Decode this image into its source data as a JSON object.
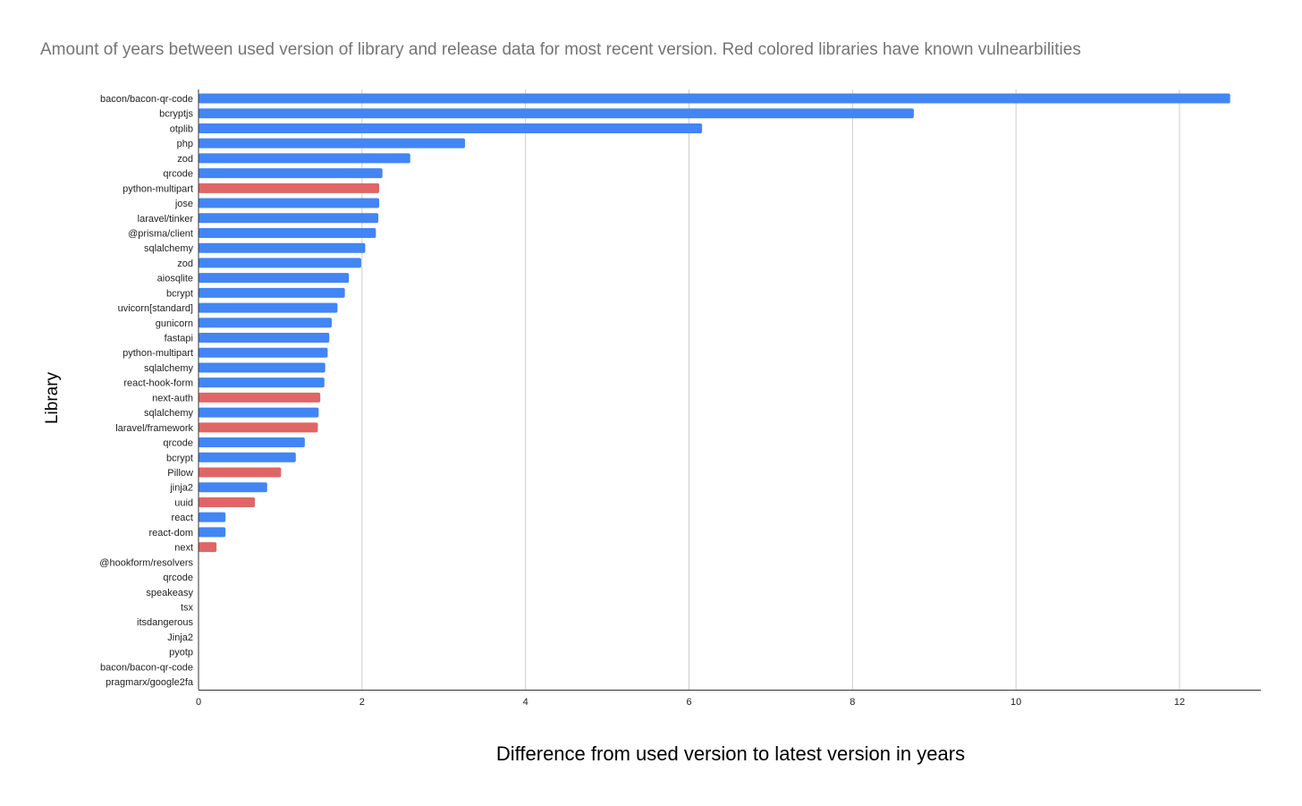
{
  "chart_data": {
    "type": "bar",
    "orientation": "horizontal",
    "title": "Amount of years between used version of library and release data for most recent version. Red colored libraries have known vulnearbilities",
    "xlabel": "Difference from used version to latest version in years",
    "ylabel": "Library",
    "xlim": [
      0,
      13
    ],
    "xticks": [
      0,
      2,
      4,
      6,
      8,
      10,
      12
    ],
    "grid": true,
    "colors": {
      "normal": "#4285f4",
      "vulnerable": "#e06666"
    },
    "categories": [
      "bacon/bacon-qr-code",
      "bcryptjs",
      "otplib",
      "php",
      "zod",
      "qrcode",
      "python-multipart",
      "jose",
      "laravel/tinker",
      "@prisma/client",
      "sqlalchemy",
      "zod",
      "aiosqlite",
      "bcrypt",
      "uvicorn[standard]",
      "gunicorn",
      "fastapi",
      "python-multipart",
      "sqlalchemy",
      "react-hook-form",
      "next-auth",
      "sqlalchemy",
      "laravel/framework",
      "qrcode",
      "bcrypt",
      "Pillow",
      "jinja2",
      "uuid",
      "react",
      "react-dom",
      "next",
      "@hookform/resolvers",
      "qrcode",
      "speakeasy",
      "tsx",
      "itsdangerous",
      "Jinja2",
      "pyotp",
      "bacon/bacon-qr-code",
      "pragmarx/google2fa"
    ],
    "values": [
      12.62,
      8.75,
      6.16,
      3.26,
      2.59,
      2.25,
      2.21,
      2.21,
      2.2,
      2.17,
      2.04,
      1.99,
      1.84,
      1.79,
      1.7,
      1.63,
      1.6,
      1.58,
      1.55,
      1.54,
      1.49,
      1.47,
      1.46,
      1.3,
      1.19,
      1.01,
      0.84,
      0.69,
      0.33,
      0.33,
      0.22,
      0,
      0,
      0,
      0,
      0,
      0,
      0,
      0,
      0
    ],
    "vulnerable": [
      false,
      false,
      false,
      false,
      false,
      false,
      true,
      false,
      false,
      false,
      false,
      false,
      false,
      false,
      false,
      false,
      false,
      false,
      false,
      false,
      true,
      false,
      true,
      false,
      false,
      true,
      false,
      true,
      false,
      false,
      true,
      false,
      false,
      false,
      false,
      false,
      false,
      false,
      false,
      false
    ]
  }
}
